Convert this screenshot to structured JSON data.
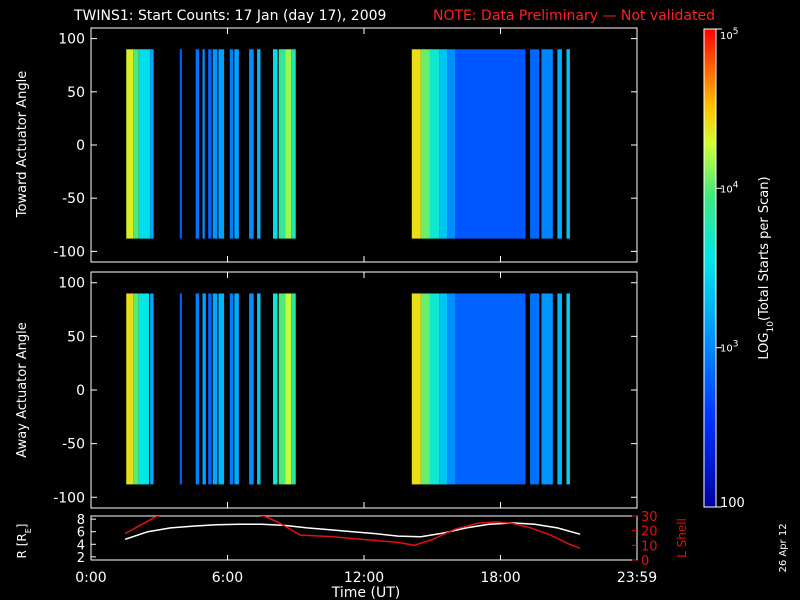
{
  "header": {
    "title": "TWINS1: Start Counts: 17 Jan (day  17), 2009",
    "note": "NOTE: Data Preliminary — Not validated",
    "note_color": "#ff2020"
  },
  "stamp": "26 Apr 12",
  "colorbar": {
    "label_main": "LOG",
    "label_sub": "10",
    "label_rest": "(Total Starts per Scan)",
    "ticks": [
      "10",
      "10",
      "10",
      "100"
    ],
    "tick_powers": [
      "5",
      "4",
      "3",
      ""
    ],
    "tick_values": [
      100000,
      10000,
      1000,
      100
    ],
    "scale": "log",
    "range": [
      100,
      100000
    ]
  },
  "chart_data": [
    {
      "type": "heatmap",
      "ylabel": "Toward Actuator Angle",
      "ylim": [
        -110,
        110
      ],
      "yticks": [
        "100",
        "50",
        "0",
        "-50",
        "-100"
      ],
      "xlim_hours": [
        0,
        24
      ],
      "count_scale": "log",
      "bands": [
        {
          "start_h": 1.55,
          "end_h": 1.85,
          "level": 0.78
        },
        {
          "start_h": 1.85,
          "end_h": 2.1,
          "level": 0.66
        },
        {
          "start_h": 2.1,
          "end_h": 2.6,
          "level": 0.5
        },
        {
          "start_h": 2.6,
          "end_h": 2.75,
          "level": 0.4
        },
        {
          "start_h": 3.9,
          "end_h": 4.0,
          "level": 0.25
        },
        {
          "start_h": 4.6,
          "end_h": 4.75,
          "level": 0.3
        },
        {
          "start_h": 4.9,
          "end_h": 5.0,
          "level": 0.35
        },
        {
          "start_h": 5.15,
          "end_h": 5.3,
          "level": 0.28
        },
        {
          "start_h": 5.35,
          "end_h": 5.55,
          "level": 0.36
        },
        {
          "start_h": 5.6,
          "end_h": 5.85,
          "level": 0.38
        },
        {
          "start_h": 6.1,
          "end_h": 6.25,
          "level": 0.32
        },
        {
          "start_h": 6.3,
          "end_h": 6.5,
          "level": 0.38
        },
        {
          "start_h": 6.95,
          "end_h": 7.15,
          "level": 0.35
        },
        {
          "start_h": 7.3,
          "end_h": 7.45,
          "level": 0.42
        },
        {
          "start_h": 8.0,
          "end_h": 8.2,
          "level": 0.5
        },
        {
          "start_h": 8.25,
          "end_h": 8.55,
          "level": 0.62
        },
        {
          "start_h": 8.55,
          "end_h": 8.8,
          "level": 0.72
        },
        {
          "start_h": 8.8,
          "end_h": 9.0,
          "level": 0.58
        },
        {
          "start_h": 14.1,
          "end_h": 14.5,
          "level": 0.8
        },
        {
          "start_h": 14.5,
          "end_h": 14.9,
          "level": 0.68
        },
        {
          "start_h": 14.9,
          "end_h": 15.3,
          "level": 0.55
        },
        {
          "start_h": 15.3,
          "end_h": 15.65,
          "level": 0.45
        },
        {
          "start_h": 15.65,
          "end_h": 16.0,
          "level": 0.35
        },
        {
          "start_h": 16.0,
          "end_h": 19.1,
          "level": 0.25
        },
        {
          "start_h": 19.3,
          "end_h": 19.7,
          "level": 0.28
        },
        {
          "start_h": 19.8,
          "end_h": 20.3,
          "level": 0.33
        },
        {
          "start_h": 20.5,
          "end_h": 20.7,
          "level": 0.4
        },
        {
          "start_h": 20.9,
          "end_h": 21.05,
          "level": 0.45
        }
      ]
    },
    {
      "type": "heatmap",
      "ylabel": "Away Actuator Angle",
      "ylim": [
        -110,
        110
      ],
      "yticks": [
        "100",
        "50",
        "0",
        "-50",
        "-100"
      ],
      "xlim_hours": [
        0,
        24
      ],
      "count_scale": "log",
      "bands": [
        {
          "start_h": 1.55,
          "end_h": 1.85,
          "level": 0.8
        },
        {
          "start_h": 1.85,
          "end_h": 2.1,
          "level": 0.67
        },
        {
          "start_h": 2.1,
          "end_h": 2.55,
          "level": 0.52
        },
        {
          "start_h": 2.6,
          "end_h": 2.75,
          "level": 0.4
        },
        {
          "start_h": 3.9,
          "end_h": 4.0,
          "level": 0.25
        },
        {
          "start_h": 4.6,
          "end_h": 4.75,
          "level": 0.32
        },
        {
          "start_h": 4.9,
          "end_h": 5.05,
          "level": 0.38
        },
        {
          "start_h": 5.15,
          "end_h": 5.3,
          "level": 0.28
        },
        {
          "start_h": 5.35,
          "end_h": 5.55,
          "level": 0.4
        },
        {
          "start_h": 5.6,
          "end_h": 5.85,
          "level": 0.42
        },
        {
          "start_h": 6.1,
          "end_h": 6.25,
          "level": 0.32
        },
        {
          "start_h": 6.3,
          "end_h": 6.5,
          "level": 0.4
        },
        {
          "start_h": 6.95,
          "end_h": 7.15,
          "level": 0.35
        },
        {
          "start_h": 7.3,
          "end_h": 7.45,
          "level": 0.45
        },
        {
          "start_h": 8.0,
          "end_h": 8.2,
          "level": 0.55
        },
        {
          "start_h": 8.25,
          "end_h": 8.55,
          "level": 0.66
        },
        {
          "start_h": 8.55,
          "end_h": 8.8,
          "level": 0.75
        },
        {
          "start_h": 8.8,
          "end_h": 9.0,
          "level": 0.6
        },
        {
          "start_h": 14.1,
          "end_h": 14.5,
          "level": 0.8
        },
        {
          "start_h": 14.5,
          "end_h": 14.9,
          "level": 0.68
        },
        {
          "start_h": 14.9,
          "end_h": 15.3,
          "level": 0.55
        },
        {
          "start_h": 15.3,
          "end_h": 15.65,
          "level": 0.45
        },
        {
          "start_h": 15.65,
          "end_h": 16.0,
          "level": 0.35
        },
        {
          "start_h": 16.0,
          "end_h": 19.1,
          "level": 0.27
        },
        {
          "start_h": 19.3,
          "end_h": 19.7,
          "level": 0.3
        },
        {
          "start_h": 19.8,
          "end_h": 20.3,
          "level": 0.36
        },
        {
          "start_h": 20.5,
          "end_h": 20.7,
          "level": 0.42
        },
        {
          "start_h": 20.9,
          "end_h": 21.05,
          "level": 0.48
        }
      ]
    },
    {
      "type": "line",
      "ylabel_left": "R [R",
      "ylabel_left_sub": "E",
      "ylabel_left_end": "]",
      "ylabel_right": "L Shell",
      "xlabel": "Time (UT)",
      "xticks": [
        "0:00",
        "6:00",
        "12:00",
        "18:00",
        "23:59"
      ],
      "xlim_hours": [
        0,
        24
      ],
      "ylim_left": [
        1.5,
        8.5
      ],
      "ylim_right": [
        0,
        30
      ],
      "yticks_left": [
        "8",
        "6",
        "4",
        "2"
      ],
      "yticks_right": [
        "30",
        "20",
        "10",
        "0"
      ],
      "series": [
        {
          "axis": "left",
          "color": "#ffffff",
          "x": [
            1.5,
            2.5,
            3.5,
            4.5,
            5.5,
            6.5,
            7.5,
            8.5,
            9.5,
            10.5,
            11.5,
            12.5,
            13.5,
            14.5,
            15.5,
            16.5,
            17.5,
            18.5,
            19.5,
            20.5,
            21.5
          ],
          "y": [
            4.8,
            6.0,
            6.6,
            6.9,
            7.1,
            7.2,
            7.2,
            7.0,
            6.6,
            6.3,
            6.0,
            5.7,
            5.3,
            5.2,
            5.8,
            6.6,
            7.2,
            7.4,
            7.2,
            6.6,
            5.6
          ]
        },
        {
          "axis": "right",
          "color": "#e01010",
          "x": [
            1.5,
            2.2,
            2.9,
            3.2,
            7.2,
            7.6,
            8.2,
            9.2,
            10.5,
            12.0,
            13.5,
            14.2,
            15.0,
            16.0,
            17.0,
            17.8,
            18.5,
            19.3,
            20.2,
            21.0,
            21.5
          ],
          "y": [
            18,
            24,
            30,
            31,
            31,
            30,
            26,
            17,
            16,
            14,
            12,
            10,
            14,
            21,
            25,
            26,
            25,
            22,
            17,
            11,
            8
          ]
        }
      ]
    }
  ]
}
